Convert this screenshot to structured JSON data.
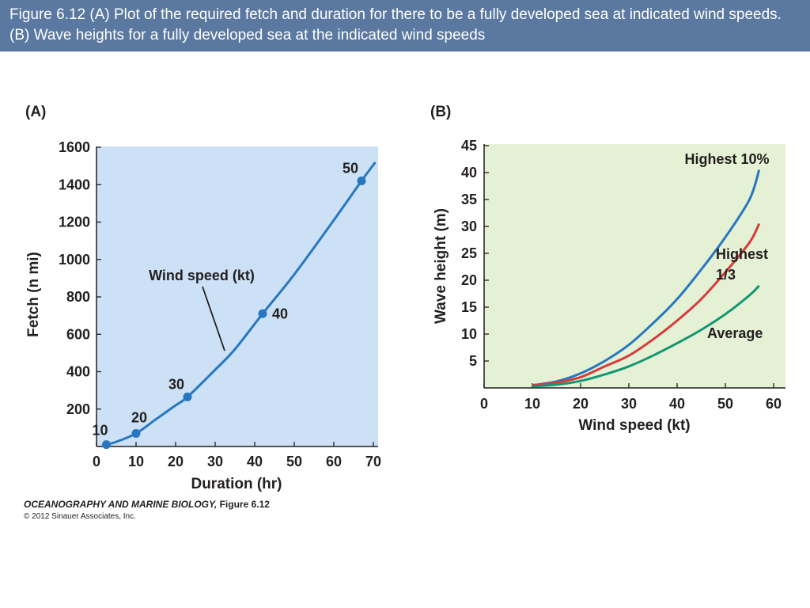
{
  "header": {
    "caption": "Figure 6.12  (A) Plot of the required fetch and duration for there to be a fully developed sea at indicated wind speeds. (B) Wave heights for a fully developed sea at the indicated wind speeds"
  },
  "colors": {
    "header_bg": "#5a78a0",
    "panel_a_bg": "#cce1f5",
    "panel_b_bg": "#e5f1d4",
    "blue": "#2777c0",
    "red": "#d63a3a",
    "green": "#139673",
    "text": "#231f20"
  },
  "chart_data": [
    {
      "panel": "(A)",
      "type": "line",
      "xlabel": "Duration (hr)",
      "ylabel": "Fetch (n mi)",
      "xlim": [
        0,
        70
      ],
      "ylim": [
        0,
        1600
      ],
      "xticks": [
        0,
        10,
        20,
        30,
        40,
        50,
        60,
        70
      ],
      "yticks": [
        200,
        400,
        600,
        800,
        1000,
        1200,
        1400,
        1600
      ],
      "grid": false,
      "series": [
        {
          "x": [
            2.5,
            5,
            10,
            15,
            20,
            23,
            30,
            35,
            42,
            50,
            60,
            67,
            70.5
          ],
          "y": [
            10,
            25,
            70,
            145,
            220,
            265,
            410,
            520,
            710,
            920,
            1210,
            1420,
            1520
          ],
          "color": "#2777c0"
        }
      ],
      "points": [
        {
          "label": "10",
          "x": 2.5,
          "y": 10
        },
        {
          "label": "20",
          "x": 10,
          "y": 70
        },
        {
          "label": "30",
          "x": 23,
          "y": 265
        },
        {
          "label": "40",
          "x": 42,
          "y": 710
        },
        {
          "label": "50",
          "x": 67,
          "y": 1420
        }
      ],
      "annotation": "Wind speed (kt)"
    },
    {
      "panel": "(B)",
      "type": "line",
      "xlabel": "Wind speed (kt)",
      "ylabel": "Wave height (m)",
      "xlim": [
        0,
        60
      ],
      "ylim": [
        0,
        45
      ],
      "xticks": [
        0,
        10,
        20,
        30,
        40,
        50,
        60
      ],
      "yticks": [
        5,
        10,
        15,
        20,
        25,
        30,
        35,
        40,
        45
      ],
      "grid": false,
      "series": [
        {
          "name": "Highest 10%",
          "color": "#2777c0",
          "x": [
            10,
            15,
            20,
            25,
            30,
            35,
            40,
            45,
            50,
            55,
            57
          ],
          "y": [
            0.5,
            1.2,
            2.7,
            5,
            8,
            12,
            16.5,
            22,
            28,
            35,
            40.5
          ]
        },
        {
          "name": "Highest 1/3",
          "color": "#d63a3a",
          "x": [
            10,
            15,
            20,
            25,
            30,
            35,
            40,
            45,
            50,
            55,
            57
          ],
          "y": [
            0.5,
            1,
            2,
            4,
            6,
            9,
            12.5,
            16.5,
            21.5,
            27,
            30.5
          ]
        },
        {
          "name": "Average",
          "color": "#139673",
          "x": [
            10,
            15,
            20,
            25,
            30,
            35,
            40,
            45,
            50,
            55,
            57
          ],
          "y": [
            0.3,
            0.6,
            1.3,
            2.5,
            4,
            6,
            8.3,
            10.8,
            13.7,
            17.2,
            19
          ]
        }
      ]
    }
  ],
  "labels_b": {
    "highest10": "Highest 10%",
    "highest13_line1": "Highest",
    "highest13_line2": "1/3",
    "average": "Average"
  },
  "footer": {
    "title": "OCEANOGRAPHY AND MARINE BIOLOGY,",
    "figure": "Figure 6.12",
    "copyright": "© 2012 Sinauer Associates, Inc."
  }
}
